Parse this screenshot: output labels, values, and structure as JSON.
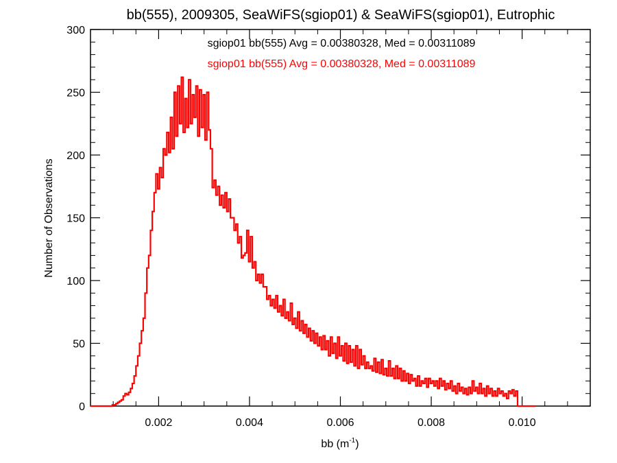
{
  "chart_data": {
    "type": "line",
    "title": "bb(555), 2009305, SeaWiFS(sgiop01) & SeaWiFS(sgiop01), Eutrophic",
    "xlabel": {
      "main": "bb (m",
      "sup": "-1",
      "close": ")"
    },
    "ylabel": "Number of Observations",
    "xlim": [
      0.0005,
      0.0115
    ],
    "ylim": [
      0,
      300
    ],
    "x_ticks": [
      0.002,
      0.004,
      0.006,
      0.008,
      0.01
    ],
    "x_tick_labels": [
      "0.002",
      "0.004",
      "0.006",
      "0.008",
      "0.010"
    ],
    "y_ticks": [
      0,
      50,
      100,
      150,
      200,
      250,
      300
    ],
    "y_tick_labels": [
      "0",
      "50",
      "100",
      "150",
      "200",
      "250",
      "300"
    ],
    "grid": false,
    "annotations": [
      {
        "text": "sgiop01 bb(555) Avg = 0.00380328, Med = 0.00311089",
        "color": "#000000"
      },
      {
        "text": "sgiop01 bb(555) Avg = 0.00380328, Med = 0.00311089",
        "color": "#ff0000"
      }
    ],
    "series": [
      {
        "color": "#ff0000",
        "bin_width": 4e-05,
        "x_start": 0.0005,
        "values": [
          0,
          0,
          0,
          0,
          0,
          0,
          0,
          0,
          0,
          0,
          0,
          0,
          1,
          1,
          2,
          3,
          4,
          5,
          8,
          10,
          9,
          11,
          14,
          18,
          24,
          32,
          40,
          50,
          60,
          70,
          90,
          110,
          120,
          140,
          155,
          170,
          185,
          173,
          190,
          182,
          205,
          200,
          218,
          202,
          230,
          205,
          250,
          215,
          255,
          225,
          262,
          218,
          245,
          222,
          260,
          225,
          248,
          230,
          255,
          215,
          252,
          222,
          248,
          212,
          250,
          220,
          205,
          174,
          180,
          168,
          175,
          160,
          168,
          158,
          170,
          155,
          165,
          150,
          150,
          140,
          145,
          130,
          135,
          118,
          120,
          122,
          140,
          115,
          135,
          110,
          115,
          100,
          105,
          98,
          105,
          95,
          95,
          85,
          88,
          80,
          85,
          78,
          88,
          75,
          80,
          72,
          85,
          70,
          75,
          68,
          82,
          65,
          70,
          62,
          75,
          60,
          68,
          58,
          65,
          55,
          62,
          52,
          60,
          50,
          58,
          48,
          55,
          45,
          56,
          45,
          52,
          40,
          55,
          42,
          50,
          38,
          55,
          40,
          48,
          36,
          50,
          34,
          48,
          35,
          45,
          32,
          48,
          30,
          45,
          33,
          40,
          30,
          35,
          30,
          32,
          28,
          38,
          27,
          35,
          26,
          37,
          25,
          30,
          24,
          36,
          24,
          30,
          22,
          32,
          22,
          30,
          20,
          28,
          20,
          26,
          18,
          25,
          20,
          22,
          16,
          24,
          16,
          20,
          18,
          22,
          15,
          22,
          18,
          20,
          16,
          20,
          14,
          22,
          16,
          20,
          13,
          18,
          14,
          20,
          12,
          16,
          10,
          18,
          12,
          15,
          10,
          14,
          9,
          15,
          10,
          20,
          12,
          15,
          10,
          18,
          10,
          14,
          8,
          16,
          10,
          14,
          8,
          12,
          8,
          14,
          10,
          12,
          8,
          10,
          6,
          12,
          10,
          13,
          8,
          12,
          0,
          0,
          0,
          0,
          0,
          0,
          0,
          0,
          0,
          0
        ]
      }
    ]
  }
}
